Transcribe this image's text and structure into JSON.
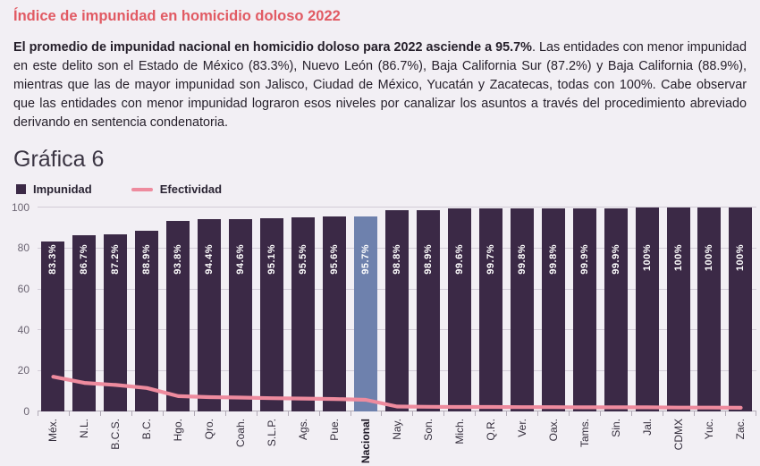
{
  "page": {
    "title": "Índice de impunidad en homicidio doloso 2022",
    "paragraph_bold": "El promedio de impunidad nacional en homicidio doloso para 2022 asciende a 95.7%",
    "paragraph_rest": ". Las entidades con menor impunidad en este delito son el Estado de México (83.3%), Nuevo León (86.7%), Baja California Sur (87.2%) y Baja California (88.9%), mientras que las de mayor impunidad son Jalisco, Ciudad de México, Yucatán y Zacatecas, todas con 100%. Cabe observar que las entidades con menor impunidad lograron esos niveles por canalizar los asuntos a través del procedimiento abreviado derivando en sentencia condenatoria.",
    "chart_heading": "Gráfica 6"
  },
  "colors": {
    "bg": "#f2eff4",
    "title": "#e15a63",
    "text": "#241e29",
    "heading": "#3b3543",
    "legend-text": "#2a2433",
    "bar": "#3b2946",
    "bar-highlight": "#6e81ad",
    "bar-label": "#ffffff",
    "line": "#ee8b9e",
    "grid": "#d2ccd7",
    "axis": "#b1aab6",
    "ylabel": "#6b6472",
    "xlabel": "#352f3d"
  },
  "chart_data": {
    "type": "bar",
    "title": "Gráfica 6",
    "categories": [
      "Méx.",
      "N.L.",
      "B.C.S.",
      "B.C.",
      "Hgo.",
      "Qro.",
      "Coah.",
      "S.L.P.",
      "Ags.",
      "Pue.",
      "Nacional",
      "Nay.",
      "Son.",
      "Mich.",
      "Q.R.",
      "Ver.",
      "Oax.",
      "Tams.",
      "Sin.",
      "Jal.",
      "CDMX",
      "Yuc.",
      "Zac."
    ],
    "series": [
      {
        "name": "Impunidad",
        "type": "bar",
        "color": "#3b2946",
        "values": [
          83.3,
          86.7,
          87.2,
          88.9,
          93.8,
          94.4,
          94.6,
          95.1,
          95.5,
          95.6,
          95.7,
          98.8,
          98.9,
          99.6,
          99.7,
          99.8,
          99.8,
          99.9,
          99.9,
          100,
          100,
          100,
          100
        ],
        "labels": [
          "83.3%",
          "86.7%",
          "87.2%",
          "88.9%",
          "93.8%",
          "94.4%",
          "94.6%",
          "95.1%",
          "95.5%",
          "95.6%",
          "95.7%",
          "98.8%",
          "98.9%",
          "99.6%",
          "99.7%",
          "99.8%",
          "99.8%",
          "99.9%",
          "99.9%",
          "100%",
          "100%",
          "100%",
          "100%"
        ]
      },
      {
        "name": "Efectividad",
        "type": "line",
        "color": "#ee8b9e",
        "values": [
          17,
          14,
          13,
          11.5,
          7.5,
          7,
          6.8,
          6.5,
          6.3,
          6.1,
          5.7,
          2.4,
          2.3,
          2.2,
          2.2,
          2.1,
          2.1,
          2,
          2,
          2,
          1.9,
          1.9,
          1.8
        ]
      }
    ],
    "highlight": {
      "category": "Nacional",
      "bar_color": "#6e81ad"
    },
    "ylim": [
      0,
      100
    ],
    "yticks": [
      0,
      20,
      40,
      60,
      80,
      100
    ],
    "grid": true,
    "legend_position": "top-left",
    "xlabel": "",
    "ylabel": ""
  }
}
